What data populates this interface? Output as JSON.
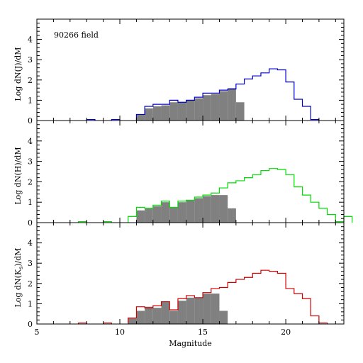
{
  "chart_data": [
    {
      "type": "histogram",
      "annotation": "90266 field",
      "ylabel": "Log dN(J)/dM",
      "xlim": [
        5,
        23.5
      ],
      "ylim": [
        0,
        5
      ],
      "bin_width": 0.5,
      "series": [
        {
          "style": "step",
          "color": "#0000cc",
          "bins": [
            [
              8.0,
              0.05
            ],
            [
              9.5,
              0.05
            ],
            [
              11.0,
              0.3
            ],
            [
              11.5,
              0.7
            ],
            [
              12.0,
              0.8
            ],
            [
              12.5,
              0.8
            ],
            [
              13.0,
              1.0
            ],
            [
              13.5,
              0.9
            ],
            [
              14.0,
              1.0
            ],
            [
              14.5,
              1.15
            ],
            [
              15.0,
              1.35
            ],
            [
              15.5,
              1.35
            ],
            [
              16.0,
              1.5
            ],
            [
              16.5,
              1.55
            ],
            [
              17.0,
              1.8
            ],
            [
              17.5,
              2.05
            ],
            [
              18.0,
              2.2
            ],
            [
              18.5,
              2.35
            ],
            [
              19.0,
              2.55
            ],
            [
              19.5,
              2.5
            ],
            [
              20.0,
              1.9
            ],
            [
              20.5,
              1.05
            ],
            [
              21.0,
              0.7
            ],
            [
              21.5,
              0.05
            ]
          ]
        },
        {
          "style": "filled",
          "color": "#808080",
          "bins": [
            [
              11.0,
              0.3
            ],
            [
              11.5,
              0.6
            ],
            [
              12.0,
              0.7
            ],
            [
              12.5,
              0.75
            ],
            [
              13.0,
              0.9
            ],
            [
              13.5,
              0.9
            ],
            [
              14.0,
              1.0
            ],
            [
              14.5,
              1.1
            ],
            [
              15.0,
              1.25
            ],
            [
              15.5,
              1.3
            ],
            [
              16.0,
              1.45
            ],
            [
              16.5,
              1.6
            ],
            [
              17.0,
              0.9
            ]
          ]
        }
      ]
    },
    {
      "type": "histogram",
      "ylabel": "Log dN(H)/dM",
      "xlim": [
        5,
        23.5
      ],
      "ylim": [
        0,
        5
      ],
      "bin_width": 0.5,
      "series": [
        {
          "style": "step",
          "color": "#00dd00",
          "bins": [
            [
              7.5,
              0.05
            ],
            [
              9.0,
              0.05
            ],
            [
              10.5,
              0.3
            ],
            [
              11.0,
              0.75
            ],
            [
              11.5,
              0.7
            ],
            [
              12.0,
              0.85
            ],
            [
              12.5,
              1.05
            ],
            [
              13.0,
              0.75
            ],
            [
              13.5,
              1.05
            ],
            [
              14.0,
              1.1
            ],
            [
              14.5,
              1.25
            ],
            [
              15.0,
              1.35
            ],
            [
              15.5,
              1.45
            ],
            [
              16.0,
              1.7
            ],
            [
              16.5,
              1.95
            ],
            [
              17.0,
              2.05
            ],
            [
              17.5,
              2.2
            ],
            [
              18.0,
              2.35
            ],
            [
              18.5,
              2.55
            ],
            [
              19.0,
              2.65
            ],
            [
              19.5,
              2.6
            ],
            [
              20.0,
              2.35
            ],
            [
              20.5,
              1.75
            ],
            [
              21.0,
              1.35
            ],
            [
              21.5,
              1.0
            ],
            [
              22.0,
              0.7
            ],
            [
              22.5,
              0.4
            ],
            [
              23.0,
              0.05
            ],
            [
              23.5,
              0.3
            ]
          ]
        },
        {
          "style": "filled",
          "color": "#808080",
          "bins": [
            [
              11.0,
              0.6
            ],
            [
              11.5,
              0.7
            ],
            [
              12.0,
              0.8
            ],
            [
              12.5,
              1.0
            ],
            [
              13.0,
              0.75
            ],
            [
              13.5,
              1.0
            ],
            [
              14.0,
              1.1
            ],
            [
              14.5,
              1.2
            ],
            [
              15.0,
              1.3
            ],
            [
              15.5,
              1.35
            ],
            [
              16.0,
              1.35
            ],
            [
              16.5,
              0.7
            ]
          ]
        }
      ]
    },
    {
      "type": "histogram",
      "ylabel": "Log dN(K",
      "ylabel_sub": "s",
      "ylabel_end": ")/dM",
      "xlabel": "Magnitude",
      "xlim": [
        5,
        23.5
      ],
      "ylim": [
        0,
        5
      ],
      "bin_width": 0.5,
      "xtick_labels": [
        "5",
        "10",
        "15",
        "20"
      ],
      "ytick_labels": [
        "0",
        "1",
        "2",
        "3",
        "4"
      ],
      "series": [
        {
          "style": "step",
          "color": "#cc0000",
          "bins": [
            [
              7.5,
              0.05
            ],
            [
              9.0,
              0.05
            ],
            [
              10.5,
              0.3
            ],
            [
              11.0,
              0.85
            ],
            [
              11.5,
              0.8
            ],
            [
              12.0,
              0.9
            ],
            [
              12.5,
              1.1
            ],
            [
              13.0,
              0.7
            ],
            [
              13.5,
              1.25
            ],
            [
              14.0,
              1.4
            ],
            [
              14.5,
              1.3
            ],
            [
              15.0,
              1.55
            ],
            [
              15.5,
              1.75
            ],
            [
              16.0,
              1.8
            ],
            [
              16.5,
              2.05
            ],
            [
              17.0,
              2.2
            ],
            [
              17.5,
              2.3
            ],
            [
              18.0,
              2.5
            ],
            [
              18.5,
              2.65
            ],
            [
              19.0,
              2.6
            ],
            [
              19.5,
              2.5
            ],
            [
              20.0,
              1.75
            ],
            [
              20.5,
              1.5
            ],
            [
              21.0,
              1.25
            ],
            [
              21.5,
              0.4
            ],
            [
              22.0,
              0.05
            ]
          ]
        },
        {
          "style": "filled",
          "color": "#808080",
          "bins": [
            [
              10.5,
              0.3
            ],
            [
              11.0,
              0.65
            ],
            [
              11.5,
              0.85
            ],
            [
              12.0,
              0.8
            ],
            [
              12.5,
              1.1
            ],
            [
              13.0,
              0.65
            ],
            [
              13.5,
              1.15
            ],
            [
              14.0,
              1.3
            ],
            [
              14.5,
              1.3
            ],
            [
              15.0,
              1.5
            ],
            [
              15.5,
              1.5
            ],
            [
              16.0,
              0.65
            ]
          ]
        }
      ]
    }
  ]
}
